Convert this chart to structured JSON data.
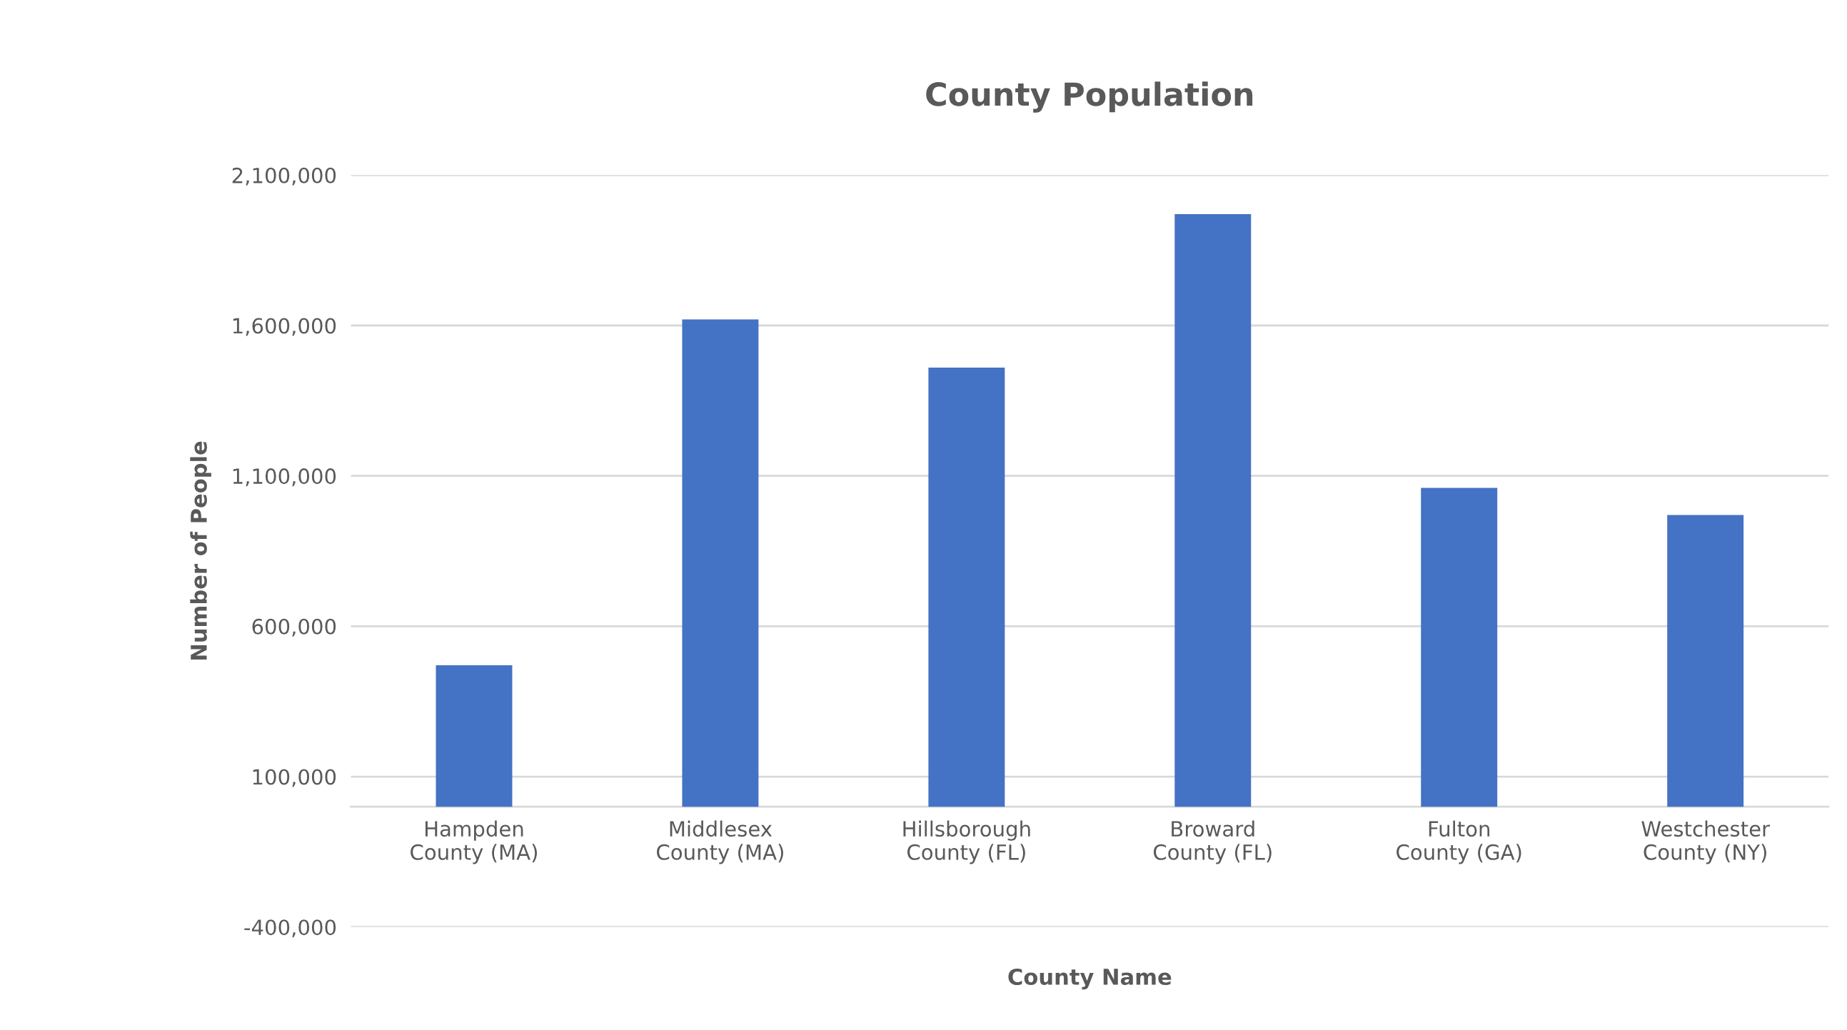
{
  "chart_data": {
    "type": "bar",
    "title": "County Population",
    "xlabel": "County Name",
    "ylabel": "Number of People",
    "categories": [
      "Hampden County (MA)",
      "Middlesex County (MA)",
      "Hillsborough County (FL)",
      "Broward County (FL)",
      "Fulton County (GA)",
      "Westchester County (NY)"
    ],
    "values": [
      470000,
      1620000,
      1460000,
      1970000,
      1060000,
      970000
    ],
    "color": "#4472c4",
    "ylim": [
      -400000,
      2100000
    ],
    "yticks": [
      {
        "value": -400000,
        "label": "-400,000"
      },
      {
        "value": 100000,
        "label": "100,000"
      },
      {
        "value": 600000,
        "label": "600,000"
      },
      {
        "value": 1100000,
        "label": "1,100,000"
      },
      {
        "value": 1600000,
        "label": "1,600,000"
      },
      {
        "value": 2100000,
        "label": "2,100,000"
      }
    ],
    "grid": "y"
  }
}
